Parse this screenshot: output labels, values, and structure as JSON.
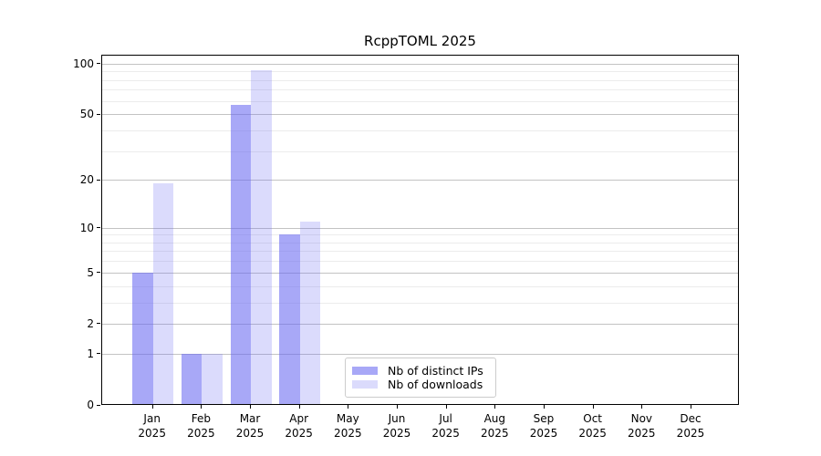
{
  "figure": {
    "background": "#ffffff"
  },
  "chart_data": {
    "type": "bar",
    "title": "RcppTOML 2025",
    "categories": [
      "Jan 2025",
      "Feb 2025",
      "Mar 2025",
      "Apr 2025",
      "May 2025",
      "Jun 2025",
      "Jul 2025",
      "Aug 2025",
      "Sep 2025",
      "Oct 2025",
      "Nov 2025",
      "Dec 2025"
    ],
    "series": [
      {
        "name": "Nb of distinct IPs",
        "color": "#6464f0",
        "opacity": 0.56,
        "values": [
          5,
          1,
          57,
          9,
          0,
          0,
          0,
          0,
          0,
          0,
          0,
          0
        ]
      },
      {
        "name": "Nb of downloads",
        "color": "#6464f0",
        "opacity": 0.23,
        "values": [
          19,
          1,
          91,
          11,
          0,
          0,
          0,
          0,
          0,
          0,
          0,
          0
        ]
      }
    ],
    "xlabel": "",
    "ylabel": "",
    "yscale": "log1p",
    "ylim": [
      0,
      113
    ],
    "y_major_ticks": [
      0,
      1,
      2,
      5,
      10,
      20,
      50,
      100
    ],
    "y_minor_ticks": [
      3,
      4,
      6,
      7,
      8,
      9,
      30,
      40,
      60,
      70,
      80,
      90
    ],
    "grid": true,
    "legend_position": "inside-lower-center"
  },
  "colors": {
    "major_grid": "#c3c3c3",
    "minor_grid": "#ececec",
    "axis_spine": "#000000",
    "text": "#000000",
    "legend_border": "#cccccc",
    "legend_background": "#ffffff"
  }
}
